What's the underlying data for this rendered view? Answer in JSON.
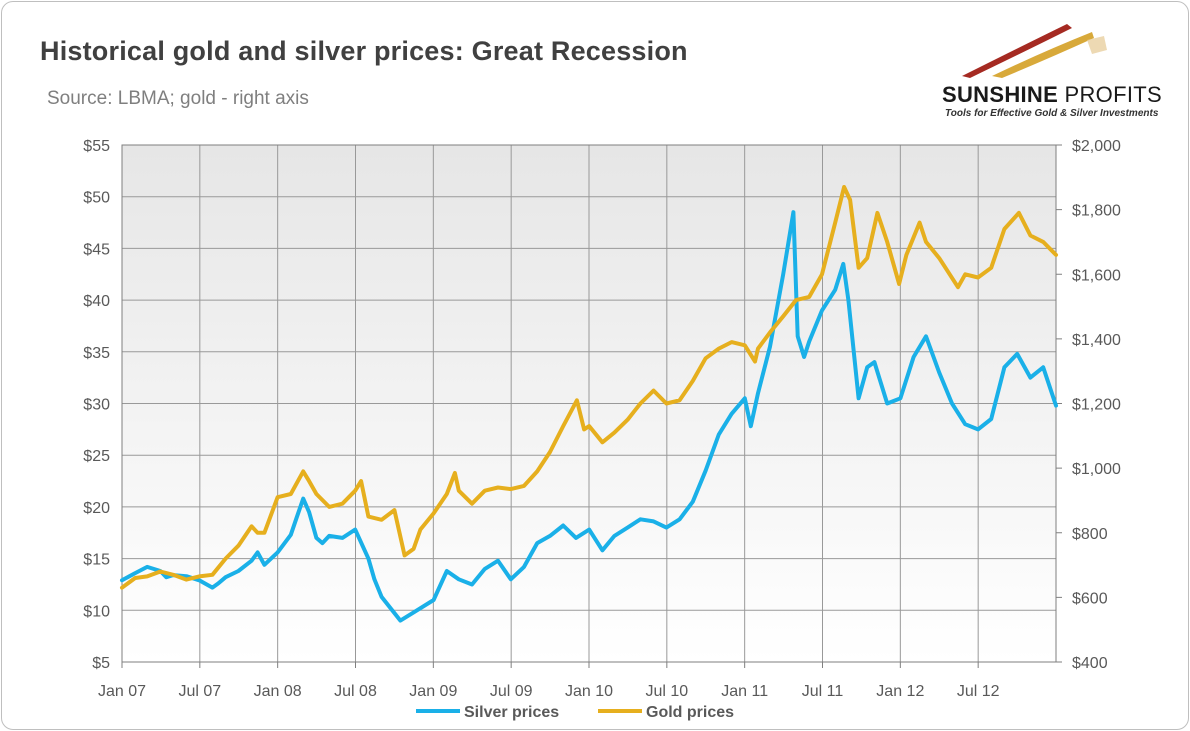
{
  "logo": {
    "name_bold": "SUNSHINE",
    "name_regular": " PROFITS",
    "tagline": "Tools for Effective Gold & Silver Investments"
  },
  "colors": {
    "silver": "#1ab0e8",
    "gold": "#e6af1e",
    "grid": "#999999",
    "logo_red": "#a52a22",
    "logo_gold": "#d8a93a"
  },
  "chart_data": {
    "type": "line",
    "title": "Historical gold and silver prices: Great Recession",
    "subtitle": "Source: LBMA; gold - right axis",
    "x_categories": [
      "Jan 07",
      "Jul 07",
      "Jan 08",
      "Jul 08",
      "Jan 09",
      "Jul 09",
      "Jan 10",
      "Jul 10",
      "Jan 11",
      "Jul 11",
      "Jan 12",
      "Jul 12"
    ],
    "x_range": [
      "2007-01-01",
      "2012-12-31"
    ],
    "y_left": {
      "ylim": [
        5,
        55
      ],
      "ticks": [
        "$5",
        "$10",
        "$15",
        "$20",
        "$25",
        "$30",
        "$35",
        "$40",
        "$45",
        "$50",
        "$55"
      ]
    },
    "y_right": {
      "ylim": [
        400,
        2000
      ],
      "ticks": [
        "$400",
        "$600",
        "$800",
        "$1,000",
        "$1,200",
        "$1,400",
        "$1,600",
        "$1,800",
        "$2,000"
      ]
    },
    "grid": true,
    "legend_position": "bottom",
    "series": [
      {
        "name": "Silver prices",
        "axis": "left",
        "x": [
          "2007-01-01",
          "2007-02-01",
          "2007-03-01",
          "2007-04-01",
          "2007-04-15",
          "2007-05-01",
          "2007-06-01",
          "2007-07-01",
          "2007-08-01",
          "2007-08-15",
          "2007-09-01",
          "2007-10-01",
          "2007-11-01",
          "2007-11-15",
          "2007-12-01",
          "2008-01-01",
          "2008-02-01",
          "2008-02-15",
          "2008-03-01",
          "2008-03-15",
          "2008-04-01",
          "2008-04-15",
          "2008-05-01",
          "2008-06-01",
          "2008-07-01",
          "2008-08-01",
          "2008-08-15",
          "2008-09-01",
          "2008-10-15",
          "2008-11-15",
          "2009-01-01",
          "2009-02-01",
          "2009-03-01",
          "2009-04-01",
          "2009-05-01",
          "2009-06-01",
          "2009-07-01",
          "2009-08-01",
          "2009-09-01",
          "2009-10-01",
          "2009-11-01",
          "2009-12-01",
          "2010-01-01",
          "2010-02-01",
          "2010-03-01",
          "2010-04-01",
          "2010-05-01",
          "2010-06-01",
          "2010-07-01",
          "2010-08-01",
          "2010-09-01",
          "2010-10-01",
          "2010-11-01",
          "2010-12-01",
          "2011-01-01",
          "2011-01-15",
          "2011-02-01",
          "2011-03-01",
          "2011-04-01",
          "2011-04-25",
          "2011-05-05",
          "2011-05-20",
          "2011-06-01",
          "2011-07-01",
          "2011-08-01",
          "2011-08-20",
          "2011-09-01",
          "2011-09-25",
          "2011-10-15",
          "2011-11-01",
          "2011-12-01",
          "2012-01-01",
          "2012-02-01",
          "2012-03-01",
          "2012-04-01",
          "2012-05-01",
          "2012-06-01",
          "2012-07-01",
          "2012-08-01",
          "2012-09-01",
          "2012-10-01",
          "2012-11-01",
          "2012-12-01",
          "2012-12-31"
        ],
        "y": [
          12.9,
          13.6,
          14.2,
          13.8,
          13.2,
          13.4,
          13.3,
          12.9,
          12.2,
          12.6,
          13.2,
          13.8,
          14.8,
          15.6,
          14.4,
          15.6,
          17.3,
          19.0,
          20.8,
          19.5,
          17.0,
          16.5,
          17.2,
          17.0,
          17.8,
          15.0,
          13.0,
          11.3,
          9.0,
          9.8,
          11.0,
          13.8,
          13.0,
          12.5,
          14.0,
          14.8,
          13.0,
          14.2,
          16.5,
          17.2,
          18.2,
          17.0,
          17.8,
          15.8,
          17.2,
          18.0,
          18.8,
          18.6,
          18.0,
          18.8,
          20.5,
          23.5,
          27.0,
          29.0,
          30.5,
          27.8,
          31.0,
          35.5,
          42.5,
          48.5,
          36.5,
          34.5,
          36.0,
          39.0,
          41.0,
          43.5,
          40.0,
          30.5,
          33.5,
          34.0,
          30.0,
          30.5,
          34.5,
          36.5,
          33.0,
          30.0,
          28.0,
          27.5,
          28.5,
          33.5,
          34.8,
          32.5,
          33.5,
          29.8
        ]
      },
      {
        "name": "Gold prices",
        "axis": "right",
        "x": [
          "2007-01-01",
          "2007-02-01",
          "2007-03-01",
          "2007-04-01",
          "2007-05-01",
          "2007-06-01",
          "2007-07-01",
          "2007-08-01",
          "2007-09-01",
          "2007-10-01",
          "2007-11-01",
          "2007-11-15",
          "2007-12-01",
          "2008-01-01",
          "2008-02-01",
          "2008-03-01",
          "2008-03-15",
          "2008-04-01",
          "2008-05-01",
          "2008-06-01",
          "2008-07-01",
          "2008-07-15",
          "2008-08-01",
          "2008-09-01",
          "2008-10-01",
          "2008-10-25",
          "2008-11-15",
          "2008-12-01",
          "2009-01-01",
          "2009-02-01",
          "2009-02-20",
          "2009-03-01",
          "2009-04-01",
          "2009-05-01",
          "2009-06-01",
          "2009-07-01",
          "2009-08-01",
          "2009-09-01",
          "2009-10-01",
          "2009-11-01",
          "2009-12-03",
          "2009-12-20",
          "2010-01-01",
          "2010-02-01",
          "2010-03-01",
          "2010-04-01",
          "2010-05-01",
          "2010-06-01",
          "2010-07-01",
          "2010-08-01",
          "2010-09-01",
          "2010-10-01",
          "2010-11-01",
          "2010-12-01",
          "2011-01-01",
          "2011-01-25",
          "2011-02-01",
          "2011-03-01",
          "2011-04-01",
          "2011-05-01",
          "2011-06-01",
          "2011-07-01",
          "2011-08-01",
          "2011-08-22",
          "2011-09-05",
          "2011-09-25",
          "2011-10-15",
          "2011-11-08",
          "2011-12-01",
          "2011-12-29",
          "2012-01-15",
          "2012-02-15",
          "2012-03-01",
          "2012-04-01",
          "2012-05-15",
          "2012-06-01",
          "2012-07-01",
          "2012-08-01",
          "2012-09-01",
          "2012-10-05",
          "2012-11-01",
          "2012-12-01",
          "2012-12-31"
        ],
        "y": [
          630,
          660,
          665,
          680,
          670,
          655,
          665,
          670,
          720,
          760,
          820,
          800,
          800,
          910,
          920,
          990,
          960,
          920,
          880,
          890,
          930,
          960,
          850,
          840,
          870,
          730,
          750,
          810,
          860,
          920,
          985,
          930,
          890,
          930,
          940,
          935,
          945,
          990,
          1050,
          1130,
          1210,
          1120,
          1130,
          1080,
          1110,
          1150,
          1200,
          1240,
          1200,
          1210,
          1270,
          1340,
          1370,
          1390,
          1380,
          1330,
          1370,
          1420,
          1470,
          1520,
          1530,
          1600,
          1760,
          1870,
          1830,
          1620,
          1650,
          1790,
          1700,
          1570,
          1660,
          1760,
          1700,
          1650,
          1560,
          1600,
          1590,
          1620,
          1740,
          1790,
          1720,
          1700,
          1660
        ]
      }
    ]
  }
}
